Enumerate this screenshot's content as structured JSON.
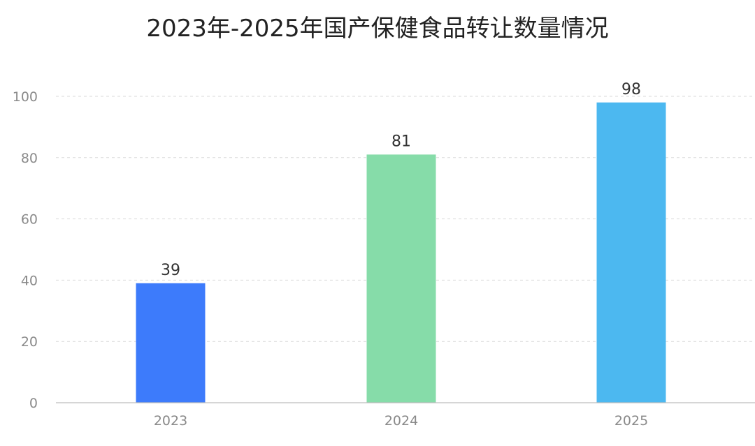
{
  "chart_data": {
    "type": "bar",
    "title": "2023年-2025年国产保健食品转让数量情况",
    "categories": [
      "2023",
      "2024",
      "2025"
    ],
    "values": [
      39,
      81,
      98
    ],
    "data_labels": [
      "39",
      "81",
      "98"
    ],
    "bar_colors": [
      "#3d7bfb",
      "#86dca9",
      "#4cb8f0"
    ],
    "ylim": [
      0,
      100
    ],
    "yticks": [
      0,
      20,
      40,
      60,
      80,
      100
    ],
    "ytick_labels": [
      "0",
      "20",
      "40",
      "60",
      "80",
      "100"
    ],
    "grid": true,
    "legend": false,
    "xlabel": "",
    "ylabel": ""
  }
}
